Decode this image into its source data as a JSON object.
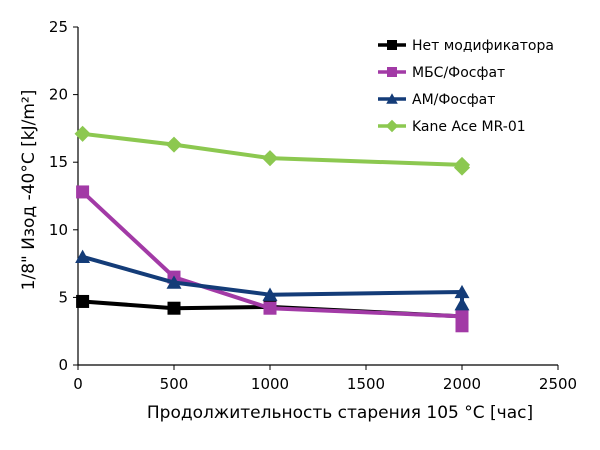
{
  "chart_data": {
    "type": "line",
    "xlabel": "Продолжительность старения 105 °C [час]",
    "ylabel": "1/8\" Изод -40°C [kJ/m²]",
    "xlim": [
      0,
      2500
    ],
    "ylim": [
      0,
      25
    ],
    "x_ticks": [
      "0",
      "500",
      "1000",
      "1500",
      "2000",
      "2500"
    ],
    "y_ticks": [
      "0",
      "5",
      "10",
      "15",
      "20",
      "25"
    ],
    "legend_position": "top-right",
    "grid": false,
    "series": [
      {
        "name": "Нет модификатора",
        "color": "#000000",
        "marker": "square",
        "x": [
          24,
          500,
          1000,
          2000,
          2000
        ],
        "y": [
          4.7,
          4.2,
          4.3,
          3.6,
          3.1
        ]
      },
      {
        "name": "МБС/Фосфат",
        "color": "#a23aa6",
        "marker": "square",
        "x": [
          24,
          500,
          1000,
          2000,
          2000
        ],
        "y": [
          12.8,
          6.5,
          4.2,
          3.6,
          2.9
        ]
      },
      {
        "name": "АМ/Фосфат",
        "color": "#143c78",
        "marker": "triangle",
        "x": [
          24,
          500,
          1000,
          2000,
          2000
        ],
        "y": [
          8.0,
          6.1,
          5.2,
          5.4,
          4.5
        ]
      },
      {
        "name": "Kane Ace MR-01",
        "color": "#8cc850",
        "marker": "diamond",
        "x": [
          24,
          500,
          1000,
          2000,
          2000
        ],
        "y": [
          17.1,
          16.3,
          15.3,
          14.8,
          14.6
        ]
      }
    ]
  }
}
